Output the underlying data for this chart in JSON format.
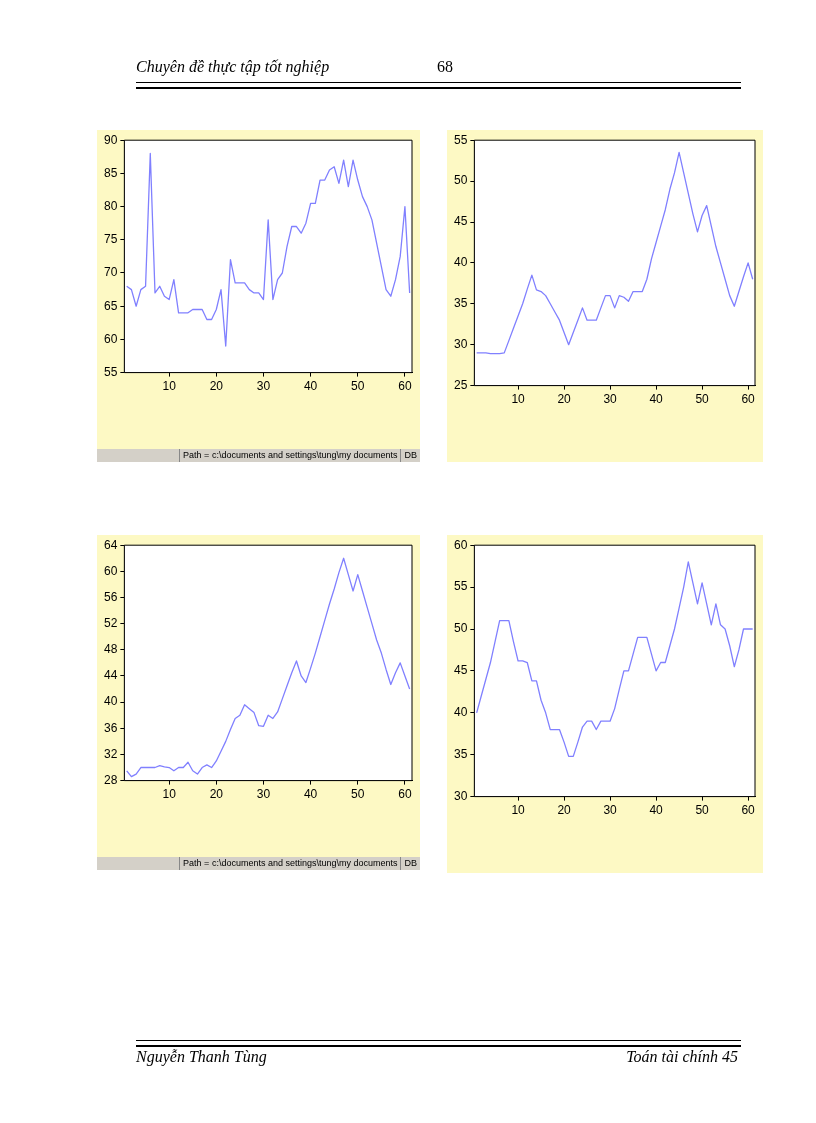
{
  "chart_data": [
    {
      "type": "other",
      "annotations": [
        "Chuyên đề thực tập tốt nghiệp",
        "68"
      ]
    },
    {
      "type": "line",
      "x": [
        1,
        2,
        3,
        4,
        5,
        6,
        7,
        8,
        9,
        10,
        11,
        12,
        13,
        14,
        15,
        16,
        17,
        18,
        19,
        20,
        21,
        22,
        23,
        24,
        25,
        26,
        27,
        28,
        29,
        30,
        31,
        32,
        33,
        34,
        35,
        36,
        37,
        38,
        39,
        40,
        41,
        42,
        43,
        44,
        45,
        46,
        47,
        48,
        49,
        50,
        51,
        52,
        53,
        54,
        55,
        56,
        57,
        58,
        59,
        60,
        61
      ],
      "series": [
        {
          "color": "#8080ff",
          "values": [
            68,
            67.5,
            65,
            67.5,
            68,
            88,
            67,
            68,
            66.5,
            66,
            69,
            64,
            64,
            64,
            64.5,
            64.5,
            64.5,
            63,
            63,
            64.5,
            67.5,
            59,
            72,
            68.5,
            68.5,
            68.5,
            67.5,
            67,
            67,
            66,
            78,
            66,
            69,
            70,
            74,
            77,
            77,
            76,
            77.5,
            80.5,
            80.5,
            84,
            84,
            85.5,
            86,
            83.5,
            87,
            83,
            87,
            84,
            81.5,
            80,
            78,
            74.5,
            71,
            67.5,
            66.5,
            69,
            72.5,
            80,
            67
          ]
        }
      ],
      "xlim": [
        0.5,
        61.5
      ],
      "xticks": [
        10,
        20,
        30,
        40,
        50,
        60
      ],
      "ylim": [
        55,
        90
      ],
      "yticks": [
        55,
        60,
        65,
        70,
        75,
        80,
        85,
        90
      ],
      "grid": false,
      "legend": false,
      "annotations": [
        "Path = c:\\documents and settings\\tung\\my documents",
        "DB"
      ]
    },
    {
      "type": "line",
      "x": [
        1,
        2,
        3,
        4,
        5,
        6,
        7,
        8,
        9,
        10,
        11,
        12,
        13,
        14,
        15,
        16,
        17,
        18,
        19,
        20,
        21,
        22,
        23,
        24,
        25,
        26,
        27,
        28,
        29,
        30,
        31,
        32,
        33,
        34,
        35,
        36,
        37,
        38,
        39,
        40,
        41,
        42,
        43,
        44,
        45,
        46,
        47,
        48,
        49,
        50,
        51,
        52,
        53,
        54,
        55,
        56,
        57,
        58,
        59,
        60,
        61
      ],
      "series": [
        {
          "color": "#8080ff",
          "values": [
            29,
            29,
            29,
            28.9,
            28.9,
            28.9,
            29,
            30.5,
            32,
            33.5,
            35,
            36.8,
            38.5,
            36.7,
            36.5,
            36,
            35,
            34,
            33,
            31.5,
            30,
            31.5,
            33,
            34.5,
            33,
            33,
            33,
            34.5,
            36,
            36,
            34.5,
            36,
            35.8,
            35.3,
            36.5,
            36.5,
            36.5,
            38,
            40.5,
            42.5,
            44.5,
            46.5,
            49,
            51,
            53.5,
            51,
            48.5,
            46,
            43.8,
            45.8,
            47,
            44.5,
            42,
            40,
            38,
            36,
            34.7,
            36.5,
            38.3,
            40,
            38
          ]
        }
      ],
      "xlim": [
        0.5,
        61.5
      ],
      "xticks": [
        10,
        20,
        30,
        40,
        50,
        60
      ],
      "ylim": [
        25,
        55
      ],
      "yticks": [
        25,
        30,
        35,
        40,
        45,
        50,
        55
      ],
      "grid": false,
      "legend": false
    },
    {
      "type": "line",
      "x": [
        1,
        2,
        3,
        4,
        5,
        6,
        7,
        8,
        9,
        10,
        11,
        12,
        13,
        14,
        15,
        16,
        17,
        18,
        19,
        20,
        21,
        22,
        23,
        24,
        25,
        26,
        27,
        28,
        29,
        30,
        31,
        32,
        33,
        34,
        35,
        36,
        37,
        38,
        39,
        40,
        41,
        42,
        43,
        44,
        45,
        46,
        47,
        48,
        49,
        50,
        51,
        52,
        53,
        54,
        55,
        56,
        57,
        58,
        59,
        60,
        61
      ],
      "series": [
        {
          "color": "#8080ff",
          "values": [
            29.5,
            28.6,
            29,
            30,
            30,
            30,
            30,
            30.3,
            30.1,
            30,
            29.5,
            30,
            30,
            30.8,
            29.5,
            29,
            30,
            30.4,
            30,
            31,
            32.5,
            34,
            35.8,
            37.5,
            38,
            39.6,
            39,
            38.4,
            36.4,
            36.3,
            38,
            37.5,
            38.5,
            40.5,
            42.5,
            44.5,
            46.3,
            44,
            43,
            45.2,
            47.5,
            50,
            52.5,
            55,
            57.3,
            59.8,
            62,
            59.5,
            57,
            59.5,
            57,
            54.5,
            52,
            49.5,
            47.5,
            45,
            42.7,
            44.5,
            46,
            44,
            42
          ]
        }
      ],
      "xlim": [
        0.5,
        61.5
      ],
      "xticks": [
        10,
        20,
        30,
        40,
        50,
        60
      ],
      "ylim": [
        28,
        64
      ],
      "yticks": [
        28,
        32,
        36,
        40,
        44,
        48,
        52,
        56,
        60,
        64
      ],
      "grid": false,
      "legend": false,
      "annotations": [
        "Path = c:\\documents and settings\\tung\\my documents",
        "DB"
      ]
    },
    {
      "type": "line",
      "x": [
        1,
        2,
        3,
        4,
        5,
        6,
        7,
        8,
        9,
        10,
        11,
        12,
        13,
        14,
        15,
        16,
        17,
        18,
        19,
        20,
        21,
        22,
        23,
        24,
        25,
        26,
        27,
        28,
        29,
        30,
        31,
        32,
        33,
        34,
        35,
        36,
        37,
        38,
        39,
        40,
        41,
        42,
        43,
        44,
        45,
        46,
        47,
        48,
        49,
        50,
        51,
        52,
        53,
        54,
        55,
        56,
        57,
        58,
        59,
        60,
        61
      ],
      "series": [
        {
          "color": "#8080ff",
          "values": [
            40,
            42,
            44,
            46,
            48.5,
            51,
            51,
            51,
            48.5,
            46.2,
            46.2,
            46,
            43.8,
            43.8,
            41.5,
            40,
            38,
            38,
            38,
            36.5,
            34.8,
            34.8,
            36.5,
            38.3,
            39,
            39,
            38,
            39,
            39,
            39,
            40.5,
            42.8,
            45,
            45,
            47,
            49,
            49,
            49,
            47,
            45,
            46,
            46,
            48,
            50,
            52.5,
            55,
            58,
            55.5,
            53,
            55.5,
            53,
            50.5,
            53,
            50.5,
            50,
            48,
            45.5,
            47.5,
            50,
            50,
            50
          ]
        }
      ],
      "xlim": [
        0.5,
        61.5
      ],
      "xticks": [
        10,
        20,
        30,
        40,
        50,
        60
      ],
      "ylim": [
        30,
        60
      ],
      "yticks": [
        30,
        35,
        40,
        45,
        50,
        55,
        60
      ],
      "grid": false,
      "legend": false
    },
    {
      "type": "other",
      "annotations": [
        "Nguyễn Thanh Tùng",
        "Toán tài chính 45"
      ]
    }
  ]
}
